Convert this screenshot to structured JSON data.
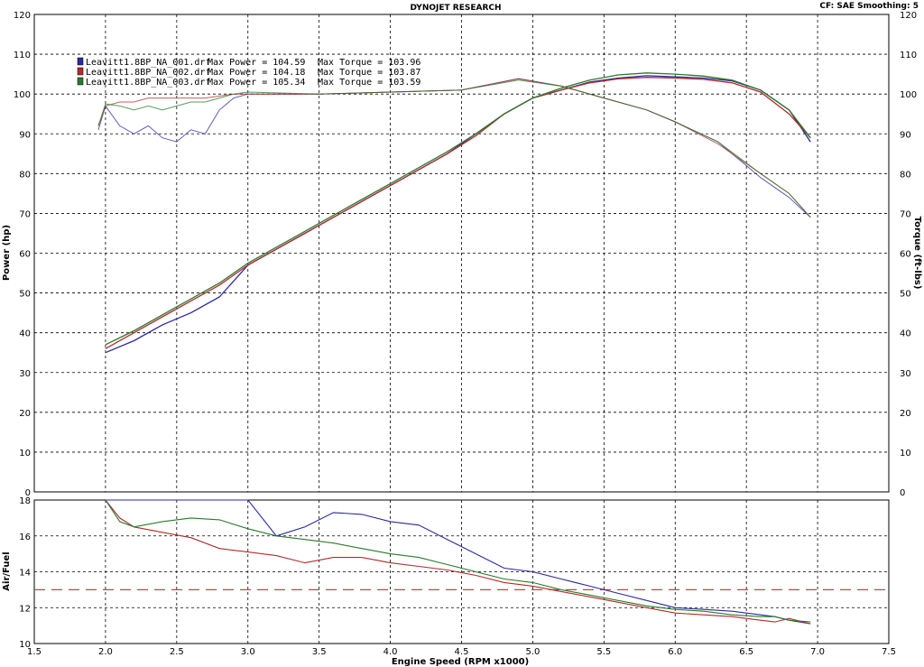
{
  "header": {
    "title": "DYNOJET RESEARCH",
    "info": "CF: SAE  Smoothing: 5"
  },
  "colors": {
    "run1": "#2a2aa0",
    "run2": "#b52a2a",
    "run3": "#2a7a2a",
    "grid": "#000000",
    "target_afr_line": "#b84a4a"
  },
  "legend": [
    {
      "file": "Leavitt1.8BP_NA_001.drf",
      "max_power": "Max Power = 104.59",
      "max_torque": "Max Torque = 103.96",
      "color": "#2a2aa0"
    },
    {
      "file": "Leavitt1.8BP_NA_002.drf",
      "max_power": "Max Power = 104.18",
      "max_torque": "Max Torque = 103.87",
      "color": "#b52a2a"
    },
    {
      "file": "Leavitt1.8BP_NA_003.drf",
      "max_power": "Max Power = 105.34",
      "max_torque": "Max Torque = 103.59",
      "color": "#2a7a2a"
    }
  ],
  "chart_data": [
    {
      "type": "line",
      "xlabel": "Engine Speed (RPM x1000)",
      "ylabel": "Power (hp)",
      "y2label": "Torque (ft-lbs)",
      "xlim": [
        1.5,
        7.5
      ],
      "ylim": [
        0,
        120
      ],
      "y2lim": [
        0,
        120
      ],
      "grid": true,
      "legend_position": "top-left",
      "x_ticks": [
        "1.5",
        "2.0",
        "2.5",
        "3.0",
        "3.5",
        "4.0",
        "4.5",
        "5.0",
        "5.5",
        "6.0",
        "6.5",
        "7.0",
        "7.5"
      ],
      "y_ticks": [
        "0",
        "10",
        "20",
        "30",
        "40",
        "50",
        "60",
        "70",
        "80",
        "90",
        "100",
        "110",
        "120"
      ],
      "power_x": [
        2.0,
        2.2,
        2.4,
        2.6,
        2.8,
        3.0,
        3.2,
        3.4,
        3.6,
        3.8,
        4.0,
        4.2,
        4.4,
        4.6,
        4.8,
        5.0,
        5.2,
        5.4,
        5.6,
        5.8,
        6.0,
        6.2,
        6.4,
        6.6,
        6.8,
        6.95
      ],
      "series": [
        {
          "name": "Leavitt1.8BP_NA_001.drf",
          "metric": "power",
          "values": [
            35,
            38,
            42,
            45,
            49,
            57,
            61,
            65,
            69,
            73,
            77,
            81,
            85,
            90,
            95,
            99,
            101,
            103,
            104,
            104.6,
            104.3,
            104,
            103.3,
            101,
            96,
            88
          ]
        },
        {
          "name": "Leavitt1.8BP_NA_002.drf",
          "metric": "power",
          "values": [
            36,
            40,
            44,
            48,
            52,
            57,
            61,
            65,
            69,
            73,
            77,
            81,
            85,
            89.5,
            95,
            99,
            101,
            102.8,
            103.8,
            104.2,
            104.0,
            103.7,
            102.8,
            100.5,
            95,
            89
          ]
        },
        {
          "name": "Leavitt1.8BP_NA_003.drf",
          "metric": "power",
          "values": [
            37,
            40.5,
            44.5,
            48.5,
            52.5,
            57.5,
            61.5,
            65.5,
            69.5,
            73.5,
            77.5,
            81.5,
            85.5,
            90,
            95,
            99,
            101.5,
            103.5,
            104.8,
            105.3,
            105,
            104.5,
            103.5,
            101,
            96,
            89
          ]
        },
        {
          "name": "Leavitt1.8BP_NA_001.drf",
          "metric": "torque",
          "x": [
            1.95,
            2.0,
            2.1,
            2.2,
            2.3,
            2.4,
            2.5,
            2.6,
            2.7,
            2.8,
            2.9,
            3.0,
            3.5,
            4.0,
            4.5,
            4.9,
            5.2,
            5.5,
            5.8,
            6.0,
            6.3,
            6.6,
            6.8,
            6.95
          ],
          "values": [
            91,
            97,
            92,
            90,
            92,
            89,
            88,
            91,
            90,
            96,
            99,
            100,
            100,
            100.5,
            101,
            103.9,
            102,
            99,
            96,
            93,
            88,
            79,
            74,
            69
          ]
        },
        {
          "name": "Leavitt1.8BP_NA_002.drf",
          "metric": "torque",
          "x": [
            1.95,
            2.0,
            2.1,
            2.2,
            2.3,
            2.4,
            2.5,
            2.6,
            2.7,
            2.8,
            2.9,
            3.0,
            3.5,
            4.0,
            4.5,
            4.9,
            5.2,
            5.5,
            5.8,
            6.0,
            6.3,
            6.6,
            6.8,
            6.95
          ],
          "values": [
            92,
            97,
            98,
            98,
            99,
            99,
            99,
            99,
            99,
            99.5,
            100,
            100,
            100,
            100.5,
            101,
            103.8,
            102,
            99,
            96,
            93,
            87.5,
            80,
            75,
            69
          ]
        },
        {
          "name": "Leavitt1.8BP_NA_003.drf",
          "metric": "torque",
          "x": [
            1.95,
            2.0,
            2.1,
            2.2,
            2.3,
            2.4,
            2.5,
            2.6,
            2.7,
            2.8,
            2.9,
            3.0,
            3.5,
            4.0,
            4.5,
            4.9,
            5.2,
            5.5,
            5.8,
            6.0,
            6.3,
            6.6,
            6.8,
            6.95
          ],
          "values": [
            92,
            97.5,
            97,
            96,
            97,
            96,
            97,
            98,
            98,
            99,
            100,
            100.5,
            100,
            100.5,
            101,
            103.5,
            102,
            99,
            96,
            93,
            88,
            80,
            75,
            69
          ]
        }
      ]
    },
    {
      "type": "line",
      "xlabel": "Engine Speed (RPM x1000)",
      "ylabel": "Air/Fuel",
      "xlim": [
        1.5,
        7.5
      ],
      "ylim": [
        10,
        18
      ],
      "grid": true,
      "y_ticks": [
        "10",
        "12",
        "14",
        "16",
        "18"
      ],
      "target_line": 13,
      "x": [
        2.0,
        2.1,
        2.2,
        2.4,
        2.6,
        2.8,
        3.0,
        3.2,
        3.4,
        3.6,
        3.8,
        4.0,
        4.2,
        4.4,
        4.6,
        4.8,
        5.0,
        5.2,
        5.4,
        5.6,
        5.8,
        6.0,
        6.2,
        6.4,
        6.6,
        6.7,
        6.8,
        6.95
      ],
      "series": [
        {
          "name": "Leavitt1.8BP_NA_001.drf",
          "values": [
            18,
            18,
            18,
            18,
            18,
            18,
            18,
            16.0,
            16.5,
            17.3,
            17.2,
            16.8,
            16.6,
            15.8,
            15.0,
            14.2,
            14.0,
            13.6,
            13.2,
            12.8,
            12.4,
            12.0,
            11.9,
            11.8,
            11.6,
            11.5,
            11.3,
            11.1
          ]
        },
        {
          "name": "Leavitt1.8BP_NA_002.drf",
          "values": [
            18,
            17.0,
            16.5,
            16.2,
            15.9,
            15.3,
            15.1,
            14.9,
            14.5,
            14.8,
            14.8,
            14.5,
            14.3,
            14.1,
            13.8,
            13.4,
            13.2,
            12.9,
            12.6,
            12.3,
            12.0,
            11.7,
            11.6,
            11.5,
            11.3,
            11.2,
            11.4,
            11.1
          ]
        },
        {
          "name": "Leavitt1.8BP_NA_003.drf",
          "values": [
            18,
            16.8,
            16.5,
            16.8,
            17.0,
            16.9,
            16.4,
            16.0,
            15.8,
            15.6,
            15.3,
            15.0,
            14.8,
            14.4,
            14.0,
            13.6,
            13.4,
            13.0,
            12.7,
            12.4,
            12.1,
            11.9,
            11.8,
            11.6,
            11.5,
            11.5,
            11.3,
            11.2
          ]
        }
      ]
    }
  ]
}
